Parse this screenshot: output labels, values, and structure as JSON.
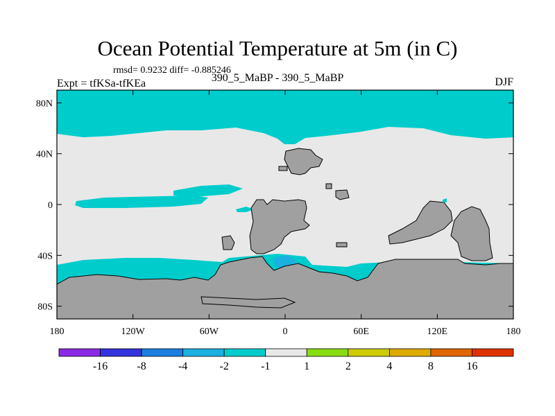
{
  "chart_data": {
    "type": "heatmap",
    "title": "Ocean Potential Temperature at 5m (in C)",
    "stats": "rmsd= 0.9232  diff= -0.885246",
    "left_label": "Expt = tfKSa-tfKEa",
    "center_label": "390_5_MaBP - 390_5_MaBP",
    "right_label": "DJF",
    "x_ticks": [
      "180",
      "120W",
      "60W",
      "0",
      "60E",
      "120E",
      "180"
    ],
    "y_ticks": [
      "80N",
      "40N",
      "0",
      "40S",
      "80S"
    ],
    "xlim": [
      -180,
      180
    ],
    "ylim": [
      -90,
      90
    ],
    "colorbar_levels": [
      "-16",
      "-8",
      "-4",
      "-2",
      "-1",
      "1",
      "2",
      "4",
      "8",
      "16"
    ],
    "colorbar_colors": [
      "#8a2be2",
      "#3333dd",
      "#1c7fe0",
      "#1ab0e0",
      "#00cccc",
      "#e8e8e8",
      "#88dd11",
      "#cccc00",
      "#ddaa00",
      "#e06600",
      "#dd3300"
    ],
    "land_color": "#a0a0a0"
  }
}
